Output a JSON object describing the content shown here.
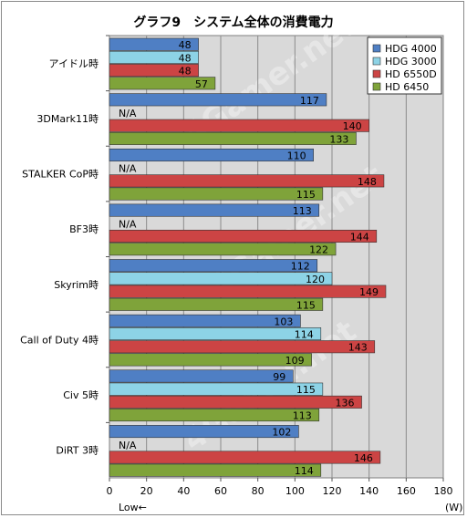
{
  "chart_data": {
    "type": "bar",
    "orientation": "horizontal",
    "title": "グラフ9　システム全体の消費電力",
    "xlabel": "(W)",
    "axis_note": "Low←",
    "xlim": [
      0,
      180
    ],
    "xticks": [
      0,
      20,
      40,
      60,
      80,
      100,
      120,
      140,
      160,
      180
    ],
    "grid": true,
    "legend_position": "top-right",
    "na_label": "N/A",
    "categories": [
      "アイドル時",
      "3DMark11時",
      "STALKER  CoP時",
      "BF3時",
      "Skyrim時",
      "Call of Duty 4時",
      "Civ 5時",
      "DiRT 3時"
    ],
    "series": [
      {
        "name": "HDG 4000",
        "color": "#4f7fc4",
        "values": [
          48,
          117,
          110,
          113,
          112,
          103,
          99,
          102
        ]
      },
      {
        "name": "HDG 3000",
        "color": "#8dd3e6",
        "values": [
          48,
          null,
          null,
          null,
          120,
          114,
          115,
          null
        ]
      },
      {
        "name": "HD 6550D",
        "color": "#cc4444",
        "values": [
          48,
          140,
          148,
          144,
          149,
          143,
          136,
          146
        ]
      },
      {
        "name": "HD 6450",
        "color": "#7fa33a",
        "values": [
          57,
          133,
          115,
          122,
          115,
          109,
          113,
          114
        ]
      }
    ],
    "watermark": "4Gamer.net"
  }
}
